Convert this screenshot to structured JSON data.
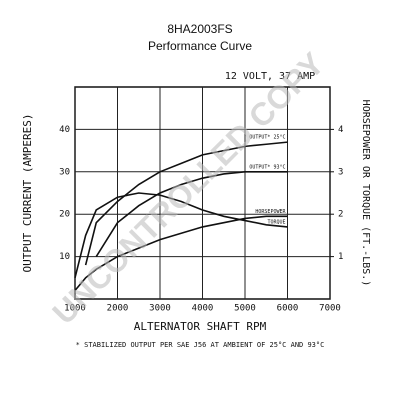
{
  "chart_data": {
    "type": "line",
    "title": "8HA2003FS",
    "subtitle": "Performance Curve",
    "annotation": "12 VOLT, 37 AMP",
    "watermark": "UNCONTROLLED COPY",
    "footnote": "* STABILIZED OUTPUT PER SAE J56 AT AMBIENT OF 25°C AND 93°C",
    "xlabel": "ALTERNATOR SHAFT RPM",
    "ylabel": "OUTPUT CURRENT (AMPERES)",
    "y2label": "HORSEPOWER OR TORQUE (FT.-LBS.)",
    "x": [
      1000,
      1250,
      1500,
      2000,
      2500,
      3000,
      3500,
      4000,
      4500,
      5000,
      5500,
      6000
    ],
    "xlim": [
      1000,
      7000
    ],
    "xticks": [
      1000,
      2000,
      3000,
      4000,
      5000,
      6000,
      7000
    ],
    "ylim": [
      0,
      50
    ],
    "yticks": [
      10,
      20,
      30,
      40
    ],
    "y2lim": [
      0,
      5
    ],
    "y2ticks": [
      1,
      2,
      3,
      4
    ],
    "grid": true,
    "series": [
      {
        "name": "OUTPUT* 25°C",
        "color": "#111111",
        "values": [
          null,
          8,
          18,
          23,
          27,
          30,
          32,
          34,
          35,
          36,
          36.5,
          37
        ]
      },
      {
        "name": "OUTPUT* 93°C",
        "color": "#111111",
        "values": [
          null,
          null,
          10,
          18,
          22,
          25,
          27,
          28.5,
          29.5,
          30,
          30,
          30
        ]
      },
      {
        "name": "HORSEPOWER",
        "color": "#111111",
        "axis": "y2",
        "values": [
          0.2,
          0.5,
          0.7,
          1.0,
          1.2,
          1.4,
          1.55,
          1.7,
          1.8,
          1.9,
          1.95,
          1.95
        ]
      },
      {
        "name": "TORQUE",
        "color": "#111111",
        "axis": "y2",
        "values": [
          0.5,
          1.5,
          2.1,
          2.4,
          2.5,
          2.45,
          2.3,
          2.1,
          1.95,
          1.85,
          1.75,
          1.7
        ]
      }
    ]
  }
}
